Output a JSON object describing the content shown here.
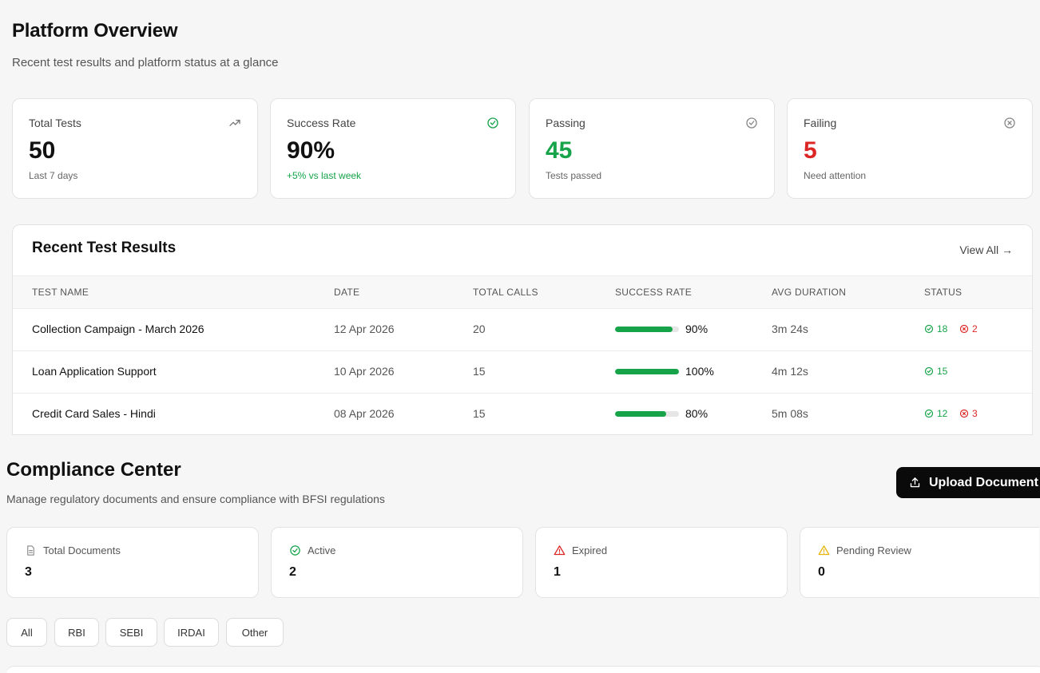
{
  "overview": {
    "title": "Platform Overview",
    "subtitle": "Recent test results and platform status at a glance",
    "stats": [
      {
        "label": "Total Tests",
        "value": "50",
        "note": "Last 7 days",
        "icon": "trending-up-icon"
      },
      {
        "label": "Success Rate",
        "value": "90%",
        "note": "+5% vs last week",
        "icon": "check-circle-icon"
      },
      {
        "label": "Passing",
        "value": "45",
        "note": "Tests passed",
        "icon": "check-circle-icon"
      },
      {
        "label": "Failing",
        "value": "5",
        "note": "Need attention",
        "icon": "x-circle-icon"
      }
    ]
  },
  "results": {
    "title": "Recent Test Results",
    "view_all": "View All →",
    "columns": [
      "TEST NAME",
      "DATE",
      "TOTAL CALLS",
      "SUCCESS RATE",
      "AVG DURATION",
      "STATUS"
    ],
    "rows": [
      {
        "name": "Collection Campaign - March 2026",
        "date": "12 Apr 2026",
        "calls": "20",
        "rate": 90,
        "rate_label": "90%",
        "duration": "3m 24s",
        "passed": "18",
        "failed": "2"
      },
      {
        "name": "Loan Application Support",
        "date": "10 Apr 2026",
        "calls": "15",
        "rate": 100,
        "rate_label": "100%",
        "duration": "4m 12s",
        "passed": "15",
        "failed": ""
      },
      {
        "name": "Credit Card Sales - Hindi",
        "date": "08 Apr 2026",
        "calls": "15",
        "rate": 80,
        "rate_label": "80%",
        "duration": "5m 08s",
        "passed": "12",
        "failed": "3"
      }
    ]
  },
  "compliance": {
    "title": "Compliance Center",
    "subtitle": "Manage regulatory documents and ensure compliance with BFSI regulations",
    "upload_label": "Upload Document",
    "cards": [
      {
        "label": "Total Documents",
        "value": "3",
        "icon": "document-icon"
      },
      {
        "label": "Active",
        "value": "2",
        "icon": "check-circle-icon"
      },
      {
        "label": "Expired",
        "value": "1",
        "icon": "warning-triangle-icon"
      },
      {
        "label": "Pending Review",
        "value": "0",
        "icon": "warning-triangle-icon"
      }
    ],
    "filters": [
      "All",
      "RBI",
      "SEBI",
      "IRDAI",
      "Other"
    ]
  },
  "colors": {
    "success": "#16a34a",
    "danger": "#dc2626",
    "warning": "#eab308",
    "button": "#0a0a0a"
  }
}
